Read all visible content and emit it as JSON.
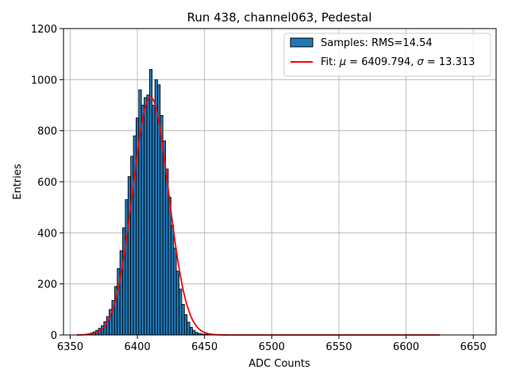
{
  "chart_data": {
    "type": "bar",
    "title": "Run 438, channel063, Pedestal",
    "xlabel": "ADC Counts",
    "ylabel": "Entries",
    "xlim": [
      6345,
      6667
    ],
    "ylim": [
      0,
      1200
    ],
    "xticks": [
      6350,
      6400,
      6450,
      6500,
      6550,
      6600,
      6650
    ],
    "yticks": [
      0,
      200,
      400,
      600,
      800,
      1000,
      1200
    ],
    "grid": true,
    "legend_position": "top-right",
    "colors": {
      "bar_fill": "#1f77b4",
      "bar_edge": "#000000",
      "fit_line": "#ff0000"
    },
    "histogram": {
      "name": "Samples: RMS=14.54",
      "x": [
        6360,
        6362,
        6364,
        6366,
        6368,
        6370,
        6372,
        6374,
        6376,
        6378,
        6380,
        6382,
        6384,
        6386,
        6388,
        6390,
        6392,
        6394,
        6396,
        6398,
        6400,
        6402,
        6404,
        6406,
        6408,
        6410,
        6412,
        6414,
        6416,
        6418,
        6420,
        6422,
        6424,
        6426,
        6428,
        6430,
        6432,
        6434,
        6436,
        6438,
        6440,
        6442,
        6444,
        6446,
        6448,
        6450,
        6452,
        6454
      ],
      "values": [
        2,
        3,
        5,
        8,
        12,
        18,
        26,
        36,
        52,
        72,
        100,
        135,
        190,
        260,
        330,
        420,
        530,
        620,
        700,
        780,
        850,
        960,
        900,
        930,
        940,
        1040,
        900,
        1000,
        980,
        860,
        760,
        650,
        540,
        430,
        340,
        250,
        180,
        120,
        80,
        50,
        30,
        18,
        10,
        6,
        4,
        3,
        2,
        1
      ]
    },
    "fit": {
      "name": "Fit: μ = 6409.794, σ = 13.313",
      "x_range": [
        6355,
        6625
      ],
      "amplitude": 932,
      "mu": 6409.794,
      "sigma": 13.313
    },
    "legend": {
      "hist_prefix": "Samples: RMS=14.54",
      "fit_label_prefix": "Fit: ",
      "fit_mu_symbol": "μ",
      "fit_mu_text": " = 6409.794, ",
      "fit_sigma_symbol": "σ",
      "fit_sigma_text": " = 13.313"
    }
  }
}
